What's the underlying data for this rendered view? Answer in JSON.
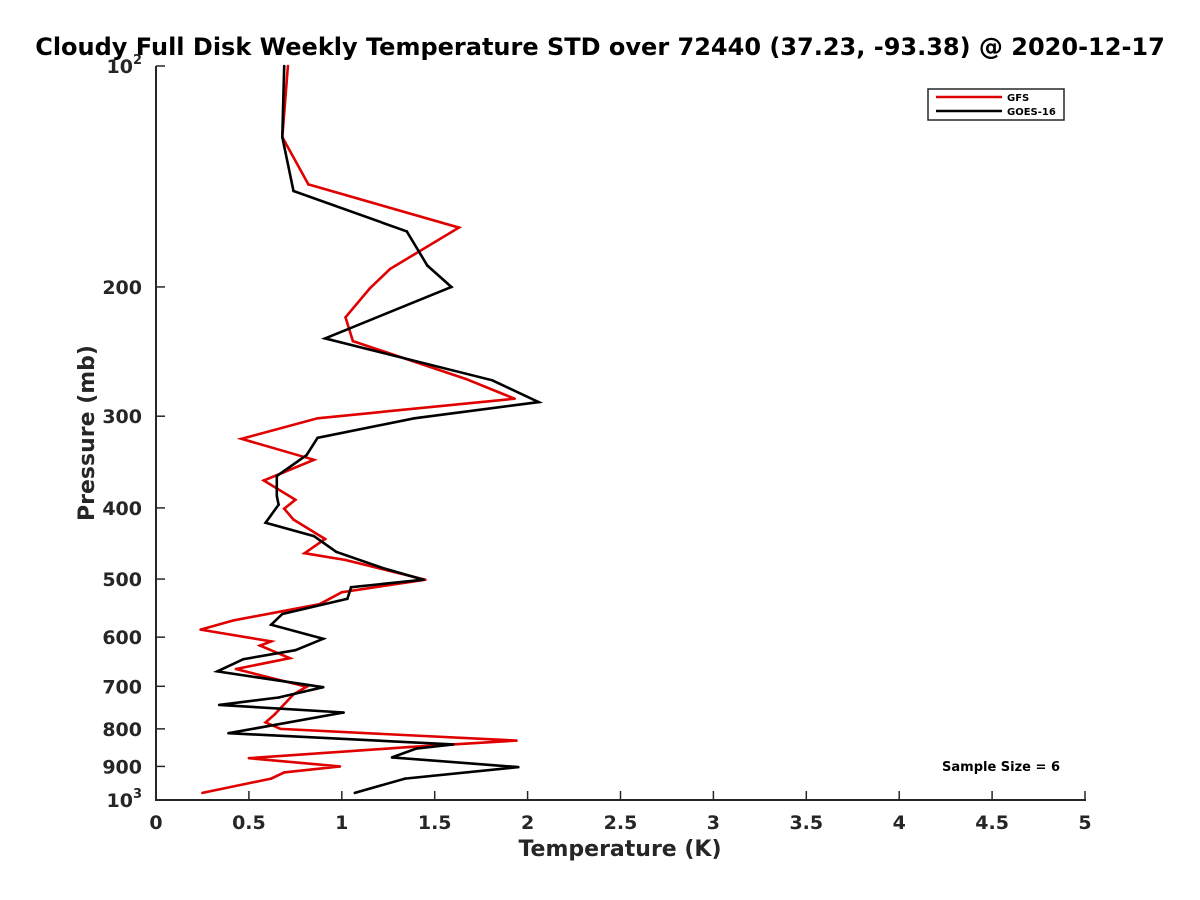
{
  "chart_data": {
    "type": "line",
    "title": "Cloudy Full Disk Weekly Temperature STD over 72440 (37.23, -93.38) @ 2020-12-17",
    "xlabel": "Temperature (K)",
    "ylabel": "Pressure (mb)",
    "xlim": [
      0,
      5
    ],
    "ylim": [
      1000,
      100
    ],
    "yscale": "log",
    "x_ticks": [
      "0",
      "0.5",
      "1",
      "1.5",
      "2",
      "2.5",
      "3",
      "3.5",
      "4",
      "4.5",
      "5"
    ],
    "y_ticks": [
      {
        "value": 100,
        "base": "10",
        "exp": "2"
      },
      {
        "value": 200,
        "label": "200"
      },
      {
        "value": 300,
        "label": "300"
      },
      {
        "value": 400,
        "label": "400"
      },
      {
        "value": 500,
        "label": "500"
      },
      {
        "value": 600,
        "label": "600"
      },
      {
        "value": 700,
        "label": "700"
      },
      {
        "value": 800,
        "label": "800"
      },
      {
        "value": 900,
        "label": "900"
      },
      {
        "value": 1000,
        "base": "10",
        "exp": "3"
      }
    ],
    "grid": false,
    "legend_position": "top-right",
    "annotation": "Sample Size = 6",
    "series": [
      {
        "name": "GFS",
        "color": "#e00000",
        "points": [
          [
            0.71,
            100
          ],
          [
            0.68,
            125
          ],
          [
            0.82,
            145
          ],
          [
            1.63,
            166
          ],
          [
            1.26,
            189
          ],
          [
            1.15,
            201
          ],
          [
            1.02,
            220
          ],
          [
            1.06,
            237
          ],
          [
            1.67,
            267
          ],
          [
            1.93,
            284
          ],
          [
            0.87,
            302
          ],
          [
            0.46,
            322
          ],
          [
            0.85,
            344
          ],
          [
            0.58,
            367
          ],
          [
            0.75,
            390
          ],
          [
            0.69,
            401
          ],
          [
            0.74,
            415
          ],
          [
            0.91,
            441
          ],
          [
            0.8,
            461
          ],
          [
            1.02,
            471
          ],
          [
            1.45,
            501
          ],
          [
            1.0,
            521
          ],
          [
            0.88,
            541
          ],
          [
            0.42,
            569
          ],
          [
            0.24,
            586
          ],
          [
            0.62,
            608
          ],
          [
            0.56,
            616
          ],
          [
            0.72,
            641
          ],
          [
            0.43,
            663
          ],
          [
            0.81,
            701
          ],
          [
            0.74,
            718
          ],
          [
            0.64,
            764
          ],
          [
            0.59,
            784
          ],
          [
            0.67,
            800
          ],
          [
            1.94,
            830
          ],
          [
            1.36,
            847
          ],
          [
            0.5,
            877
          ],
          [
            0.99,
            900
          ],
          [
            0.69,
            917
          ],
          [
            0.62,
            935
          ],
          [
            0.25,
            978
          ]
        ]
      },
      {
        "name": "GOES-16",
        "color": "#000000",
        "points": [
          [
            0.69,
            100
          ],
          [
            0.68,
            125
          ],
          [
            0.74,
            148
          ],
          [
            1.35,
            168
          ],
          [
            1.46,
            187
          ],
          [
            1.59,
            200
          ],
          [
            0.91,
            235
          ],
          [
            1.81,
            268
          ],
          [
            2.06,
            287
          ],
          [
            1.39,
            302
          ],
          [
            0.87,
            321
          ],
          [
            0.81,
            339
          ],
          [
            0.65,
            362
          ],
          [
            0.65,
            385
          ],
          [
            0.66,
            396
          ],
          [
            0.59,
            419
          ],
          [
            0.85,
            437
          ],
          [
            0.97,
            459
          ],
          [
            1.22,
            483
          ],
          [
            1.44,
            501
          ],
          [
            1.05,
            513
          ],
          [
            1.03,
            532
          ],
          [
            0.68,
            558
          ],
          [
            0.62,
            577
          ],
          [
            0.9,
            603
          ],
          [
            0.75,
            625
          ],
          [
            0.47,
            643
          ],
          [
            0.33,
            668
          ],
          [
            0.9,
            702
          ],
          [
            0.66,
            725
          ],
          [
            0.34,
            742
          ],
          [
            1.01,
            760
          ],
          [
            0.39,
            811
          ],
          [
            1.6,
            840
          ],
          [
            1.4,
            851
          ],
          [
            1.27,
            875
          ],
          [
            1.95,
            902
          ],
          [
            1.34,
            935
          ],
          [
            1.07,
            978
          ]
        ]
      }
    ]
  }
}
